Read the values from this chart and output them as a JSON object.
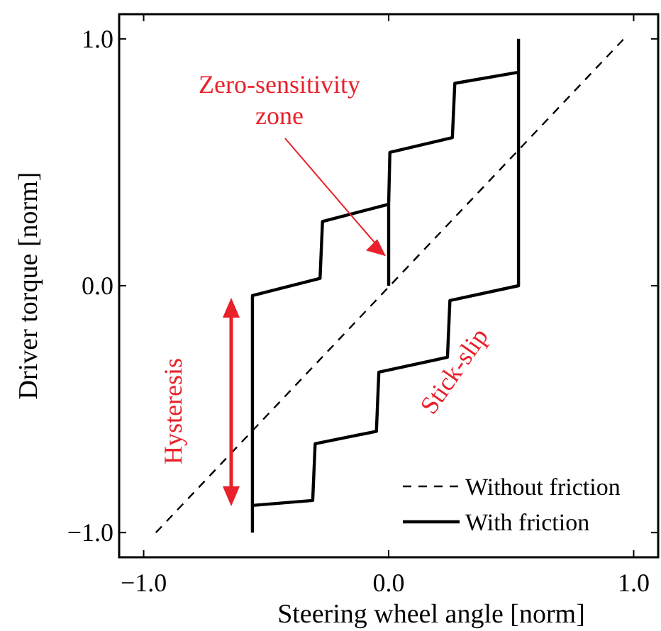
{
  "chart_data": {
    "type": "line",
    "xlabel": "Steering wheel angle [norm]",
    "ylabel": "Driver torque [norm]",
    "xlim": [
      -1.1,
      1.1
    ],
    "ylim": [
      -1.1,
      1.1
    ],
    "xticks": [
      {
        "value": -1,
        "label": "−1.0"
      },
      {
        "value": 0,
        "label": "0.0"
      },
      {
        "value": 1,
        "label": "1.0"
      }
    ],
    "yticks": [
      {
        "value": -1,
        "label": "−1.0"
      },
      {
        "value": 0,
        "label": "0.0"
      },
      {
        "value": 1,
        "label": "1.0"
      }
    ],
    "grid": false,
    "legend": "bottom right",
    "series": [
      {
        "name": "Without friction",
        "color": "#000000",
        "line_style": "dashed",
        "x": [
          -0.95,
          0.96
        ],
        "values": [
          -1.0,
          1.0
        ]
      },
      {
        "name": "With friction",
        "color": "#000000",
        "line_style": "solid",
        "x": [
          0.0,
          0.0,
          -0.27,
          -0.28,
          -0.556,
          -0.556,
          null,
          -0.556,
          -0.31,
          -0.3,
          -0.05,
          -0.04,
          0.24,
          0.25,
          0.53,
          0.53,
          null,
          0.0,
          0.005,
          0.26,
          0.27,
          0.53
        ],
        "values": [
          0.0,
          0.33,
          0.26,
          0.03,
          -0.04,
          -1.0,
          null,
          -0.89,
          -0.87,
          -0.64,
          -0.59,
          -0.35,
          -0.29,
          -0.06,
          0.0,
          1.0,
          null,
          0.33,
          0.54,
          0.6,
          0.82,
          0.865
        ]
      }
    ],
    "annotations": [
      {
        "text": "Zero-sensitivity zone",
        "x": 0.0,
        "y": 0.12
      },
      "Hysteresis",
      "Stick-slip"
    ]
  }
}
